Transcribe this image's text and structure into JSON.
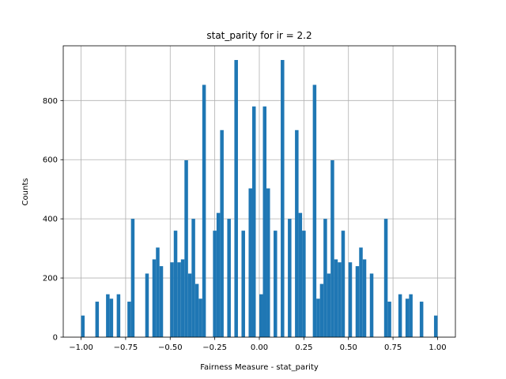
{
  "chart_data": {
    "type": "bar",
    "title": "stat_parity for ir = 2.2",
    "xlabel": "Fairness Measure - stat_parity",
    "ylabel": "Counts",
    "xlim": [
      -1.1,
      1.1
    ],
    "ylim": [
      0,
      985
    ],
    "x_ticks": [
      -1.0,
      -0.75,
      -0.5,
      -0.25,
      0.0,
      0.25,
      0.5,
      0.75,
      1.0
    ],
    "x_tick_labels": [
      "−1.00",
      "−0.75",
      "−0.50",
      "−0.25",
      "0.00",
      "0.25",
      "0.50",
      "0.75",
      "1.00"
    ],
    "y_ticks": [
      0,
      200,
      400,
      600,
      800
    ],
    "y_tick_labels": [
      "0",
      "200",
      "400",
      "600",
      "800"
    ],
    "grid": true,
    "color": "#1f77b4",
    "bin_width": 0.02,
    "bins": [
      {
        "x": -0.99,
        "value": 73
      },
      {
        "x": -0.91,
        "value": 120
      },
      {
        "x": -0.85,
        "value": 145
      },
      {
        "x": -0.83,
        "value": 130
      },
      {
        "x": -0.79,
        "value": 145
      },
      {
        "x": -0.73,
        "value": 120
      },
      {
        "x": -0.71,
        "value": 400
      },
      {
        "x": -0.63,
        "value": 215
      },
      {
        "x": -0.59,
        "value": 263
      },
      {
        "x": -0.57,
        "value": 303
      },
      {
        "x": -0.55,
        "value": 240
      },
      {
        "x": -0.49,
        "value": 253
      },
      {
        "x": -0.47,
        "value": 360
      },
      {
        "x": -0.45,
        "value": 253
      },
      {
        "x": -0.43,
        "value": 263
      },
      {
        "x": -0.41,
        "value": 598
      },
      {
        "x": -0.39,
        "value": 215
      },
      {
        "x": -0.37,
        "value": 400
      },
      {
        "x": -0.35,
        "value": 180
      },
      {
        "x": -0.33,
        "value": 130
      },
      {
        "x": -0.31,
        "value": 853
      },
      {
        "x": -0.25,
        "value": 360
      },
      {
        "x": -0.23,
        "value": 420
      },
      {
        "x": -0.21,
        "value": 700
      },
      {
        "x": -0.17,
        "value": 400
      },
      {
        "x": -0.13,
        "value": 937
      },
      {
        "x": -0.09,
        "value": 360
      },
      {
        "x": -0.05,
        "value": 503
      },
      {
        "x": -0.03,
        "value": 780
      },
      {
        "x": 0.01,
        "value": 145
      },
      {
        "x": 0.03,
        "value": 780
      },
      {
        "x": 0.05,
        "value": 503
      },
      {
        "x": 0.09,
        "value": 360
      },
      {
        "x": 0.13,
        "value": 937
      },
      {
        "x": 0.17,
        "value": 400
      },
      {
        "x": 0.21,
        "value": 700
      },
      {
        "x": 0.23,
        "value": 420
      },
      {
        "x": 0.25,
        "value": 360
      },
      {
        "x": 0.31,
        "value": 853
      },
      {
        "x": 0.33,
        "value": 130
      },
      {
        "x": 0.35,
        "value": 180
      },
      {
        "x": 0.37,
        "value": 400
      },
      {
        "x": 0.39,
        "value": 215
      },
      {
        "x": 0.41,
        "value": 598
      },
      {
        "x": 0.43,
        "value": 263
      },
      {
        "x": 0.45,
        "value": 253
      },
      {
        "x": 0.47,
        "value": 360
      },
      {
        "x": 0.51,
        "value": 253
      },
      {
        "x": 0.55,
        "value": 240
      },
      {
        "x": 0.57,
        "value": 303
      },
      {
        "x": 0.59,
        "value": 263
      },
      {
        "x": 0.63,
        "value": 215
      },
      {
        "x": 0.71,
        "value": 400
      },
      {
        "x": 0.73,
        "value": 120
      },
      {
        "x": 0.79,
        "value": 145
      },
      {
        "x": 0.83,
        "value": 130
      },
      {
        "x": 0.85,
        "value": 145
      },
      {
        "x": 0.91,
        "value": 120
      },
      {
        "x": 0.99,
        "value": 73
      }
    ]
  }
}
